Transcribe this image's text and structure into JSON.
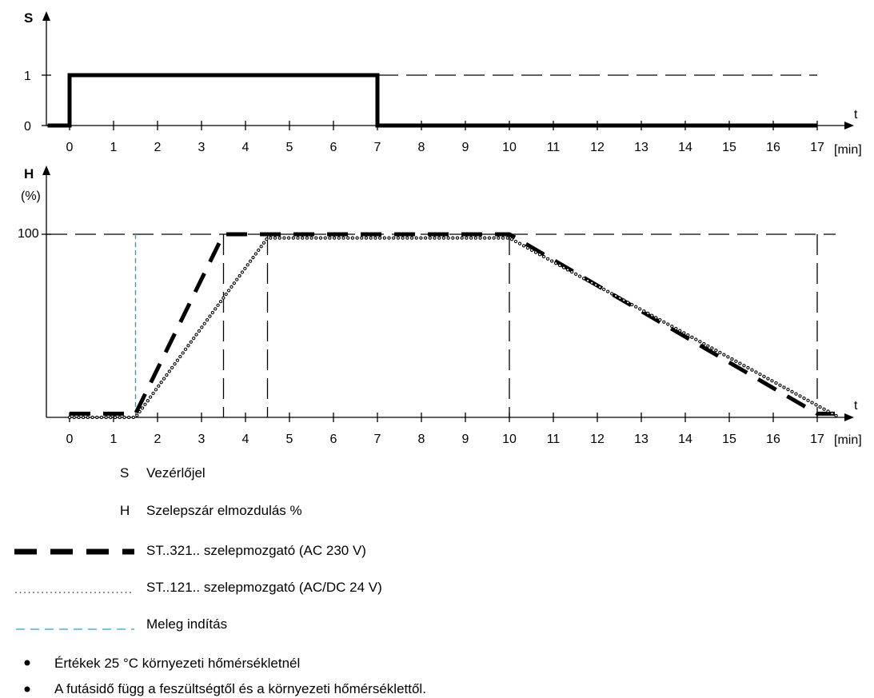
{
  "chart_data": [
    {
      "type": "line",
      "ylabel": "S",
      "xlabel": "t",
      "x_unit": "[min]",
      "x_ticks": [
        0,
        1,
        2,
        3,
        4,
        5,
        6,
        7,
        8,
        9,
        10,
        11,
        12,
        13,
        14,
        15,
        16,
        17
      ],
      "y_ticks": [
        "0",
        "1"
      ],
      "xlim": [
        0,
        17
      ],
      "ylim": [
        0,
        1
      ],
      "series": [
        {
          "key": "signal",
          "style": "thick-solid",
          "points": [
            [
              -0.5,
              0
            ],
            [
              0,
              0
            ],
            [
              0,
              1
            ],
            [
              7,
              1
            ],
            [
              7,
              0
            ],
            [
              17,
              0
            ]
          ]
        }
      ],
      "reference": {
        "y": 1,
        "x_from": 7,
        "x_to": 17,
        "style": "long-dash"
      }
    },
    {
      "type": "line",
      "ylabel": "H",
      "ylabel_unit": "(%)",
      "xlabel": "t",
      "x_unit": "[min]",
      "x_ticks": [
        0,
        1,
        2,
        3,
        4,
        5,
        6,
        7,
        8,
        9,
        10,
        11,
        12,
        13,
        14,
        15,
        16,
        17
      ],
      "y_ticks": [
        "100"
      ],
      "xlim": [
        0,
        17
      ],
      "ylim": [
        0,
        100
      ],
      "series": [
        {
          "name": "ST..321.. szelepmozgató (AC 230 V)",
          "style": "thick-dashed",
          "points": [
            [
              0,
              2
            ],
            [
              1.5,
              2
            ],
            [
              3.5,
              100
            ],
            [
              10,
              100
            ],
            [
              17,
              2
            ],
            [
              17.4,
              2
            ]
          ]
        },
        {
          "name": "ST..121.. szelepmozgató (AC/DC 24 V)",
          "style": "dotted",
          "points": [
            [
              0,
              0
            ],
            [
              1.5,
              0
            ],
            [
              4.5,
              98
            ],
            [
              10,
              98
            ],
            [
              17.5,
              0
            ]
          ]
        }
      ],
      "markers": [
        {
          "x": 1.5,
          "style": "warm-start"
        },
        {
          "x": 3.5,
          "style": "long-dash"
        },
        {
          "x": 4.5,
          "style": "long-dash"
        },
        {
          "x": 10,
          "style": "long-dash"
        },
        {
          "x": 17,
          "style": "long-dash"
        }
      ],
      "reference": {
        "y": 100,
        "style": "long-dash"
      }
    }
  ],
  "legend": {
    "abbr": [
      {
        "code": "S",
        "text": "Vezérlőjel"
      },
      {
        "code": "H",
        "text": "Szelepszár elmozdulás %"
      }
    ],
    "lines": [
      {
        "style": "thick-dashed",
        "text": "ST..321.. szelepmozgató (AC 230 V)"
      },
      {
        "style": "dotted",
        "text": "ST..121.. szelepmozgató (AC/DC 24 V)"
      },
      {
        "style": "warm-start",
        "text": "Meleg indítás"
      }
    ]
  },
  "notes": [
    "Értékek 25 °C környezeti hőmérsékletnél",
    "A futásidő függ a feszültségtől és a környezeti hőmérséklettől."
  ],
  "colors": {
    "warm_start": "#2a9fd6",
    "ink": "#000000"
  }
}
